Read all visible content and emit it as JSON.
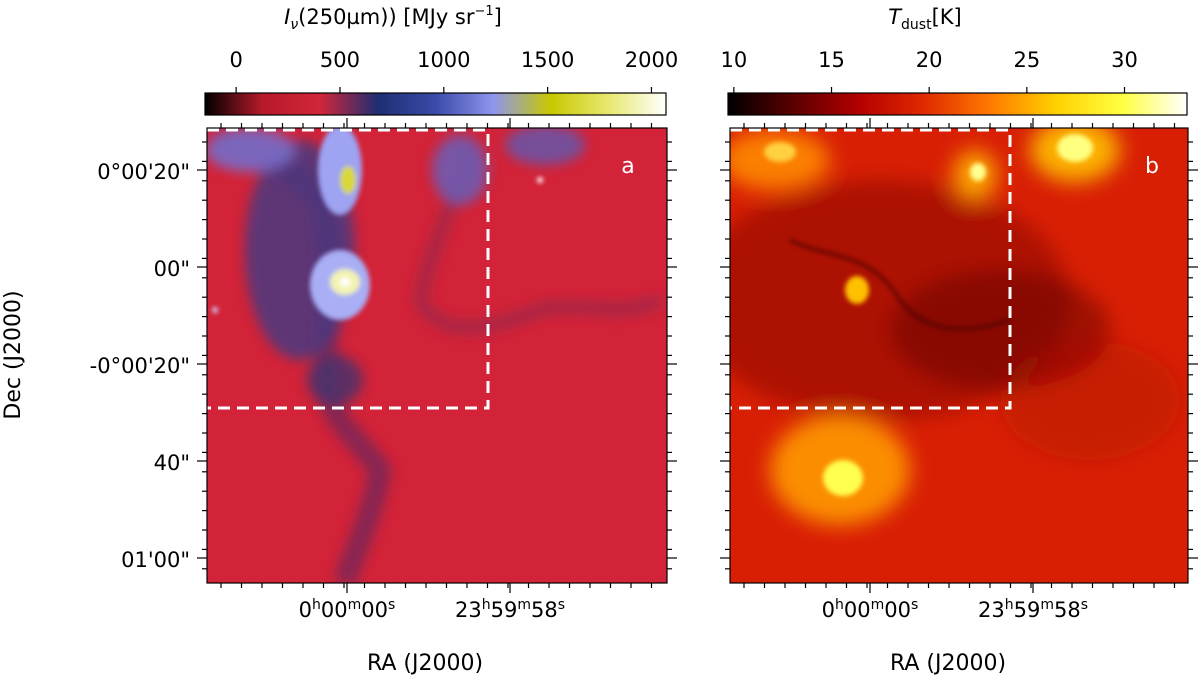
{
  "chart_data": [
    {
      "type": "heatmap",
      "panel_label": "a",
      "colorbar": {
        "label_symbol": "I",
        "label_subscript": "ν",
        "label_rest": "(250µm)) [MJy sr",
        "label_exp": "−1",
        "label_close": "]",
        "range": [
          -150,
          2070
        ],
        "ticks": [
          0,
          500,
          1000,
          1500,
          2000
        ],
        "tick_labels": [
          "0",
          "500",
          "1000",
          "1500",
          "2000"
        ],
        "colormap": [
          "#000000",
          "#b71a2a",
          "#d0263a",
          "#1e2e72",
          "#3a4aa8",
          "#8f95ee",
          "#c8c800",
          "#e8e870",
          "#ffffff"
        ]
      },
      "background_color": "#d32338",
      "features": [
        {
          "name": "northern-filament",
          "x": 0.27,
          "y": 0.12,
          "intensity": 1500
        },
        {
          "name": "central-clump",
          "x": 0.31,
          "y": 0.35,
          "intensity": 2000
        },
        {
          "name": "north-east-cloud",
          "x": 0.55,
          "y": 0.08,
          "intensity": 700
        }
      ],
      "ylabel": "Dec (J2000)",
      "ytick_labels": [
        "0°00'20\"",
        "00\"",
        "-0°00'20\"",
        "40\"",
        "01'00\""
      ],
      "ytick_values_arcsec": [
        20,
        0,
        -20,
        -40,
        -60
      ],
      "xlabel": "RA (J2000)",
      "xtick_labels": [
        {
          "h": "0",
          "m": "00",
          "s": "00"
        },
        {
          "h": "23",
          "m": "59",
          "s": "58"
        }
      ],
      "xtick_values_sec": [
        0,
        -2
      ],
      "dashed_box": {
        "description": "sub-region outline",
        "color": "#ffffff"
      }
    },
    {
      "type": "heatmap",
      "panel_label": "b",
      "colorbar": {
        "label_symbol": "T",
        "label_subscript": "dust",
        "label_rest": "[K]",
        "range": [
          9.7,
          33.2
        ],
        "ticks": [
          10,
          15,
          20,
          25,
          30
        ],
        "tick_labels": [
          "10",
          "15",
          "20",
          "25",
          "30"
        ],
        "colormap": [
          "#000000",
          "#5a0000",
          "#b40000",
          "#e02a00",
          "#ff7a00",
          "#ffd000",
          "#ffff40",
          "#ffffff"
        ]
      },
      "background_color": "#d81f04",
      "features": [
        {
          "name": "warm-spot-north-west",
          "x": 0.12,
          "y": 0.05,
          "temperature": 29
        },
        {
          "name": "warm-spot-north-east",
          "x": 0.75,
          "y": 0.04,
          "temperature": 31
        },
        {
          "name": "warm-spot-south",
          "x": 0.25,
          "y": 0.76,
          "temperature": 27
        },
        {
          "name": "cold-ridge",
          "x": 0.55,
          "y": 0.38,
          "temperature": 12
        }
      ],
      "xlabel": "RA (J2000)",
      "xtick_labels": [
        {
          "h": "0",
          "m": "00",
          "s": "00"
        },
        {
          "h": "23",
          "m": "59",
          "s": "58"
        }
      ],
      "xtick_values_sec": [
        0,
        -2
      ],
      "dashed_box": {
        "description": "sub-region outline",
        "color": "#ffffff"
      }
    }
  ]
}
